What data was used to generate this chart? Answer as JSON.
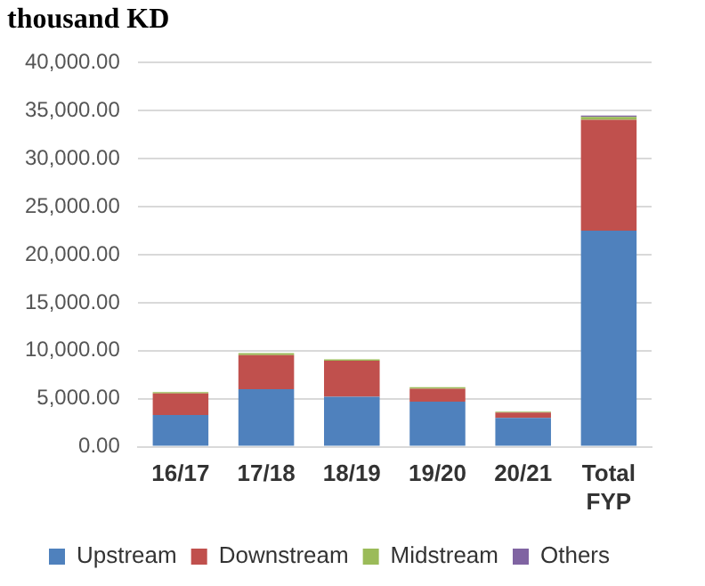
{
  "chart_data": {
    "type": "bar",
    "title": "thousand KD",
    "stacked": true,
    "categories": [
      "16/17",
      "17/18",
      "18/19",
      "19/20",
      "20/21",
      "Total FYP"
    ],
    "series": [
      {
        "name": "Upstream",
        "color": "#4f81bd",
        "values": [
          3300,
          6000,
          5200,
          4700,
          3000,
          22500
        ]
      },
      {
        "name": "Downstream",
        "color": "#c0504d",
        "values": [
          2250,
          3550,
          3750,
          1350,
          550,
          11550
        ]
      },
      {
        "name": "Midstream",
        "color": "#9bbb59",
        "values": [
          150,
          200,
          150,
          150,
          100,
          300
        ]
      },
      {
        "name": "Others",
        "color": "#8064a2",
        "values": [
          null,
          null,
          null,
          null,
          null,
          150
        ]
      }
    ],
    "ylim": [
      0,
      40000
    ],
    "yticks": [
      {
        "value": 0,
        "label": "0.00"
      },
      {
        "value": 5000,
        "label": "5,000.00"
      },
      {
        "value": 10000,
        "label": "10,000.00"
      },
      {
        "value": 15000,
        "label": "15,000.00"
      },
      {
        "value": 20000,
        "label": "20,000.00"
      },
      {
        "value": 25000,
        "label": "25,000.00"
      },
      {
        "value": 30000,
        "label": "30,000.00"
      },
      {
        "value": 35000,
        "label": "35,000.00"
      },
      {
        "value": 40000,
        "label": "40,000.00"
      }
    ],
    "grid": "y",
    "legend": "bottom"
  }
}
